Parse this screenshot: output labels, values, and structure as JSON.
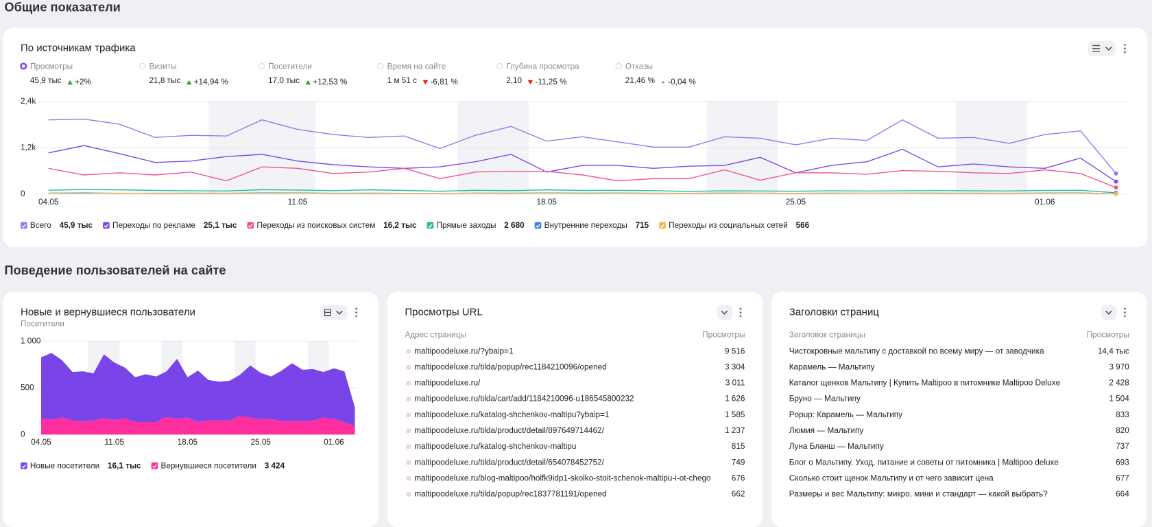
{
  "header": {
    "title": "Общие показатели"
  },
  "traffic": {
    "title": "По источникам трафика",
    "metrics": [
      {
        "label": "Просмотры",
        "value": "45,9 тыс",
        "change": "+2%",
        "trend": "up",
        "selected": true
      },
      {
        "label": "Визиты",
        "value": "21,8 тыс",
        "change": "+14,94 %",
        "trend": "up",
        "selected": false
      },
      {
        "label": "Посетители",
        "value": "17,0 тыс",
        "change": "+12,53 %",
        "trend": "up",
        "selected": false
      },
      {
        "label": "Время на сайте",
        "value": "1 м 51 с",
        "change": "-6,81 %",
        "trend": "down",
        "selected": false
      },
      {
        "label": "Глубина просмотра",
        "value": "2,10",
        "change": "-11,25 %",
        "trend": "down",
        "selected": false
      },
      {
        "label": "Отказы",
        "value": "21,46 %",
        "change": "-0,04 %",
        "trend": "flat",
        "selected": false
      }
    ],
    "chart_data": {
      "type": "line",
      "categories": [
        "04.05",
        null,
        null,
        null,
        null,
        null,
        null,
        "11.05",
        null,
        null,
        null,
        null,
        null,
        null,
        "18.05",
        null,
        null,
        null,
        null,
        null,
        null,
        "25.05",
        null,
        null,
        null,
        null,
        null,
        null,
        "01.06",
        null,
        null
      ],
      "series": [
        {
          "name": "Всего",
          "total": "45,9 тыс",
          "color": "#8a7cf0",
          "values": [
            1924,
            1943,
            1810,
            1467,
            1524,
            1505,
            1924,
            1676,
            1543,
            1467,
            1505,
            1181,
            1524,
            1753,
            1372,
            1486,
            1353,
            1219,
            1219,
            1486,
            1448,
            1276,
            1448,
            1391,
            1924,
            1448,
            1467,
            1314,
            1543,
            1638,
            533
          ]
        },
        {
          "name": "Переходы по рекламе",
          "total": "25,1 тыс",
          "color": "#7e48e6",
          "values": [
            1067,
            1257,
            1048,
            819,
            857,
            972,
            1029,
            857,
            762,
            705,
            667,
            705,
            838,
            1029,
            572,
            743,
            743,
            667,
            724,
            743,
            953,
            552,
            743,
            838,
            1162,
            705,
            781,
            705,
            667,
            933,
            324
          ]
        },
        {
          "name": "Переходы из поисковых систем",
          "total": "16,2 тыс",
          "color": "#f5508f",
          "values": [
            667,
            495,
            552,
            495,
            572,
            343,
            705,
            667,
            533,
            572,
            667,
            400,
            572,
            591,
            591,
            495,
            343,
            400,
            400,
            629,
            362,
            552,
            552,
            514,
            610,
            591,
            552,
            533,
            629,
            533,
            171
          ]
        },
        {
          "name": "Прямые заходы",
          "total": "2 680",
          "color": "#25b79f",
          "values": [
            100,
            120,
            110,
            95,
            85,
            80,
            115,
            105,
            90,
            110,
            95,
            75,
            100,
            90,
            110,
            95,
            100,
            90,
            70,
            85,
            80,
            75,
            85,
            80,
            85,
            90,
            85,
            80,
            95,
            100,
            35
          ]
        },
        {
          "name": "Внутренние переходы",
          "total": "715",
          "color": "#3b82e8",
          "values": [
            25,
            30,
            20,
            22,
            25,
            20,
            30,
            28,
            22,
            25,
            20,
            18,
            25,
            22,
            28,
            24,
            26,
            22,
            20,
            24,
            22,
            20,
            24,
            22,
            25,
            24,
            22,
            20,
            26,
            28,
            10
          ]
        },
        {
          "name": "Переходы из социальных сетей",
          "total": "566",
          "color": "#f5b54a",
          "values": [
            20,
            18,
            22,
            15,
            18,
            16,
            20,
            22,
            18,
            15,
            16,
            14,
            20,
            18,
            22,
            18,
            20,
            16,
            15,
            18,
            20,
            16,
            18,
            22,
            20,
            18,
            16,
            15,
            20,
            22,
            8
          ]
        }
      ],
      "ylim": [
        0,
        2400
      ],
      "yticks": [
        0,
        {
          "value": 1200,
          "label": "1,2k"
        },
        {
          "value": 2400,
          "label": "2,4k"
        }
      ],
      "grid": true
    }
  },
  "behavior": {
    "title": "Поведение пользователей на сайте"
  },
  "visitors": {
    "title": "Новые и вернувшиеся пользователи",
    "subtitle": "Посетители",
    "chart_data": {
      "type": "area",
      "stacked": true,
      "categories": [
        "04.05",
        null,
        null,
        null,
        null,
        null,
        null,
        "11.05",
        null,
        null,
        null,
        null,
        null,
        null,
        "18.05",
        null,
        null,
        null,
        null,
        null,
        null,
        "25.05",
        null,
        null,
        null,
        null,
        null,
        null,
        "01.06",
        null,
        null
      ],
      "series": [
        {
          "name": "Новые посетители",
          "total": "16,1 тыс",
          "color": "#7a45e8",
          "values": [
            654,
            717,
            614,
            519,
            535,
            504,
            685,
            615,
            544,
            480,
            512,
            488,
            488,
            646,
            433,
            551,
            433,
            417,
            425,
            441,
            559,
            496,
            457,
            543,
            614,
            551,
            551,
            488,
            544,
            543,
            204
          ]
        },
        {
          "name": "Вернувшиеся посетители",
          "total": "3 424",
          "color": "#ff2e9e",
          "values": [
            173,
            157,
            181,
            150,
            142,
            150,
            173,
            157,
            173,
            134,
            134,
            134,
            189,
            165,
            181,
            134,
            150,
            150,
            150,
            197,
            181,
            165,
            165,
            142,
            150,
            142,
            150,
            181,
            165,
            134,
            87
          ]
        }
      ],
      "ylim": [
        0,
        1000
      ],
      "yticks": [
        0,
        500,
        {
          "value": 1000,
          "label": "1 000"
        }
      ],
      "grid": true
    }
  },
  "urls": {
    "title": "Просмотры URL",
    "columns": [
      "Адрес страницы",
      "Просмотры"
    ],
    "rows": [
      [
        "maltipoodeluxe.ru/?ybaip=1",
        "9 516"
      ],
      [
        "maltipoodeluxe.ru/tilda/popup/rec1184210096/opened",
        "3 304"
      ],
      [
        "maltipoodeluxe.ru/",
        "3 011"
      ],
      [
        "maltipoodeluxe.ru/tilda/cart/add/1184210096-u186545800232",
        "1 626"
      ],
      [
        "maltipoodeluxe.ru/katalog-shchenkov-maltipu?ybaip=1",
        "1 585"
      ],
      [
        "maltipoodeluxe.ru/tilda/product/detail/897649714462/",
        "1 237"
      ],
      [
        "maltipoodeluxe.ru/katalog-shchenkov-maltipu",
        "815"
      ],
      [
        "maltipoodeluxe.ru/tilda/product/detail/654078452752/",
        "749"
      ],
      [
        "maltipoodeluxe.ru/blog-maltipoo/holfk9idp1-skolko-stoit-schenok-maltipu-i-ot-chego",
        "676"
      ],
      [
        "maltipoodeluxe.ru/tilda/popup/rec1837781191/opened",
        "662"
      ]
    ]
  },
  "headlines": {
    "title": "Заголовки страниц",
    "columns": [
      "Заголовок страницы",
      "Просмотры"
    ],
    "rows": [
      [
        "Чистокровные мальтипу с доставкой по всему миру — от заводчика",
        "14,4 тыс"
      ],
      [
        "Карамель — Мальтипу",
        "3 970"
      ],
      [
        "Каталог щенков Мальтипу | Купить Maltipoo в питомнике Maltipoo Deluxe",
        "2 428"
      ],
      [
        "Бруно — Мальтипу",
        "1 504"
      ],
      [
        "Popup: Карамель — Мальтипу",
        "833"
      ],
      [
        "Люмия — Мальтипу",
        "820"
      ],
      [
        "Луна Бланш — Мальтипу",
        "737"
      ],
      [
        "Блог о Мальтипу. Уход, питание и советы от питомника | Maltipoo deluxe",
        "693"
      ],
      [
        "Сколько стоит щенок Мальтипу и от чего зависит цена",
        "677"
      ],
      [
        "Размеры и вес Мальтипу: микро, мини и стандарт — какой выбрать?",
        "664"
      ]
    ]
  }
}
